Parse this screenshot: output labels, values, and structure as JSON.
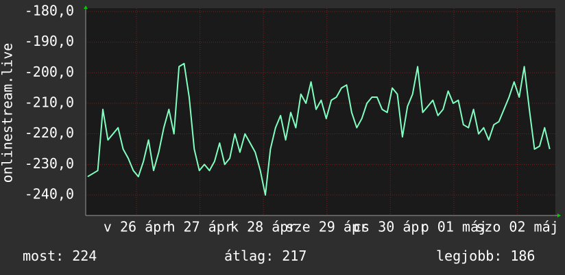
{
  "chart_data": {
    "type": "line",
    "ylabel": "onlinestream.live",
    "color": "#80ffc0",
    "grid": true,
    "xlim": [
      0,
      7.4
    ],
    "ylim": [
      -246.7,
      -178.9
    ],
    "yticks": [
      {
        "value": -180,
        "label": "-180,0"
      },
      {
        "value": -190,
        "label": "-190,0"
      },
      {
        "value": -200,
        "label": "-200,0"
      },
      {
        "value": -210,
        "label": "-210,0"
      },
      {
        "value": -220,
        "label": "-220,0"
      },
      {
        "value": -230,
        "label": "-230,0"
      },
      {
        "value": -240,
        "label": "-240,0"
      }
    ],
    "xticks": [
      {
        "value": 0.8,
        "label": "v 26 ápr"
      },
      {
        "value": 1.8,
        "label": "h 27 ápr"
      },
      {
        "value": 2.8,
        "label": "k 28 ápr"
      },
      {
        "value": 3.8,
        "label": "sze 29 ápr"
      },
      {
        "value": 4.8,
        "label": "cs 30 ápr"
      },
      {
        "value": 5.8,
        "label": "p 01 máj"
      },
      {
        "value": 6.8,
        "label": "szo 02 máj"
      }
    ],
    "x": [
      0.03,
      0.11,
      0.19,
      0.27,
      0.35,
      0.43,
      0.51,
      0.59,
      0.67,
      0.75,
      0.83,
      0.91,
      0.99,
      1.07,
      1.15,
      1.23,
      1.31,
      1.39,
      1.47,
      1.55,
      1.63,
      1.71,
      1.79,
      1.87,
      1.95,
      2.03,
      2.11,
      2.19,
      2.27,
      2.35,
      2.43,
      2.51,
      2.59,
      2.67,
      2.75,
      2.83,
      2.91,
      2.99,
      3.07,
      3.15,
      3.23,
      3.31,
      3.39,
      3.47,
      3.55,
      3.63,
      3.71,
      3.79,
      3.87,
      3.95,
      4.03,
      4.11,
      4.19,
      4.27,
      4.35,
      4.43,
      4.51,
      4.59,
      4.67,
      4.75,
      4.83,
      4.91,
      4.99,
      5.07,
      5.15,
      5.23,
      5.31,
      5.39,
      5.47,
      5.55,
      5.63,
      5.71,
      5.79,
      5.87,
      5.95,
      6.03,
      6.11,
      6.19,
      6.27,
      6.35,
      6.43,
      6.51,
      6.59,
      6.67,
      6.75,
      6.83,
      6.91,
      6.99,
      7.07,
      7.15,
      7.23,
      7.31
    ],
    "values": [
      -234,
      -233,
      -232,
      -212,
      -222,
      -220,
      -218,
      -225,
      -228,
      -232,
      -234,
      -229,
      -222,
      -232,
      -226,
      -218,
      -212,
      -220,
      -198,
      -197,
      -208,
      -225,
      -232,
      -230,
      -232,
      -229,
      -223,
      -230,
      -228,
      -220,
      -226,
      -220,
      -223,
      -226,
      -232,
      -240,
      -225,
      -218,
      -214,
      -222,
      -213,
      -218,
      -207,
      -210,
      -203,
      -212,
      -209,
      -215,
      -209,
      -208,
      -205,
      -204,
      -213,
      -218,
      -215,
      -210,
      -208,
      -208,
      -212,
      -213,
      -205,
      -207,
      -221,
      -211,
      -207,
      -198,
      -213,
      -211,
      -209,
      -214,
      -212,
      -206,
      -210,
      -209,
      -217,
      -218,
      -212,
      -220,
      -218,
      -222,
      -217,
      -216,
      -212,
      -208,
      -203,
      -208,
      -198,
      -212,
      -225,
      -224,
      -218,
      -225
    ],
    "summary": [
      {
        "label": "most:",
        "value": 224
      },
      {
        "label": "átlag:",
        "value": 217
      },
      {
        "label": "legjobb:",
        "value": 186
      }
    ]
  }
}
